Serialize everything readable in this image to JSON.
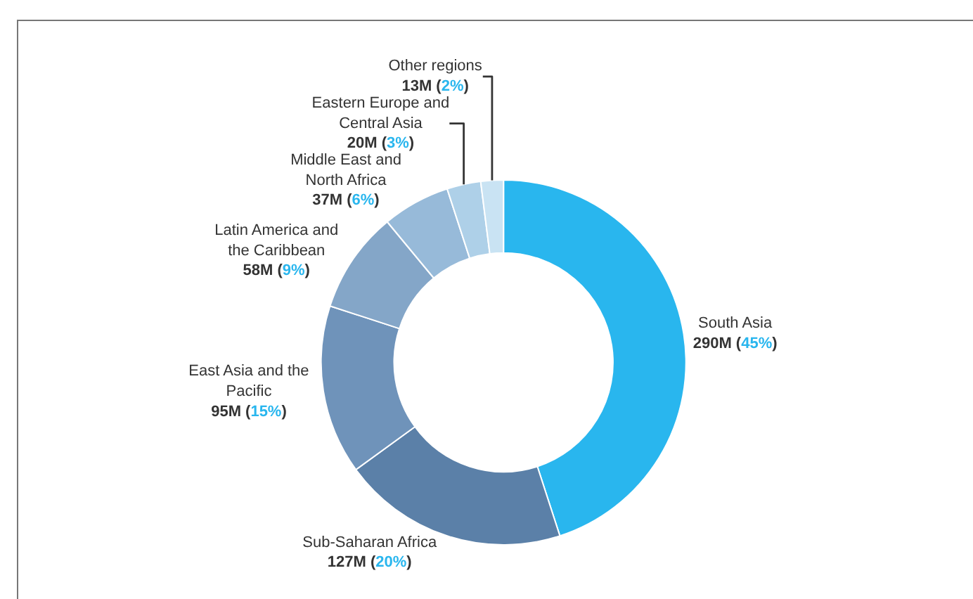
{
  "chart_data": {
    "type": "donut",
    "categories": [
      "South Asia",
      "Sub-Saharan Africa",
      "East Asia and the Pacific",
      "Latin America and the Caribbean",
      "Middle East and North Africa",
      "Eastern Europe and Central Asia",
      "Other regions"
    ],
    "values": [
      45,
      20,
      15,
      9,
      6,
      3,
      2
    ],
    "value_labels": [
      "290M (45%)",
      "127M (20%)",
      "95M (15%)",
      "58M (9%)",
      "37M (6%)",
      "20M (3%)",
      "13M (2%)"
    ],
    "colors": [
      "#29b6ee",
      "#5b80a8",
      "#6f93ba",
      "#84a6c8",
      "#97bad9",
      "#aed0e8",
      "#c9e3f3"
    ],
    "legend": false
  }
}
